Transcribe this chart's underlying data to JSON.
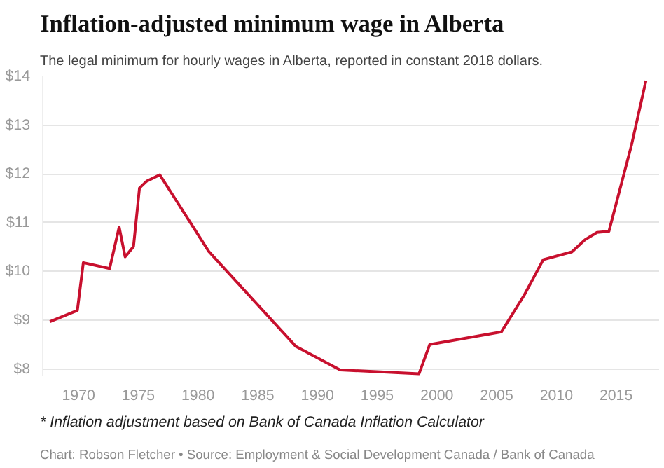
{
  "chart_data": {
    "type": "line",
    "title": "Inflation-adjusted minimum wage in Alberta",
    "subtitle": "The legal minimum for hourly wages in Alberta, reported in constant 2018 dollars.",
    "annotations": [
      "* Inflation adjustment based on Bank of Canada Inflation Calculator",
      "Chart: Robson Fletcher • Source: Employment & Social Development Canada / Bank of Canada"
    ],
    "x": [
      1967.6,
      1969.9,
      1970.4,
      1972.6,
      1973.4,
      1973.9,
      1974.6,
      1975.1,
      1975.7,
      1976.8,
      1980.9,
      1988.2,
      1991.9,
      1998.5,
      1999.4,
      2005.4,
      2007.3,
      2008.9,
      2011.3,
      2012.4,
      2013.4,
      2014.4,
      2016.3,
      2017.5
    ],
    "series": [
      {
        "color": "#c8102e",
        "values": [
          8.97,
          9.2,
          10.18,
          10.06,
          10.91,
          10.3,
          10.51,
          11.71,
          11.85,
          11.98,
          10.41,
          8.46,
          7.98,
          7.9,
          8.5,
          8.76,
          9.51,
          10.24,
          10.4,
          10.65,
          10.8,
          10.82,
          12.6,
          13.91
        ]
      }
    ],
    "xlim": [
      1967,
      2018.6
    ],
    "xticks": [
      1970,
      1975,
      1980,
      1985,
      1990,
      1995,
      2000,
      2005,
      2010,
      2015
    ],
    "ylim": [
      7.85,
      14
    ],
    "yticks": [
      {
        "value": 8,
        "label": "$8"
      },
      {
        "value": 9,
        "label": "$9"
      },
      {
        "value": 10,
        "label": "$10"
      },
      {
        "value": 11,
        "label": "$11"
      },
      {
        "value": 12,
        "label": "$12"
      },
      {
        "value": 13,
        "label": "$13"
      },
      {
        "value": 14,
        "label": "$14"
      }
    ],
    "grid": "y"
  }
}
